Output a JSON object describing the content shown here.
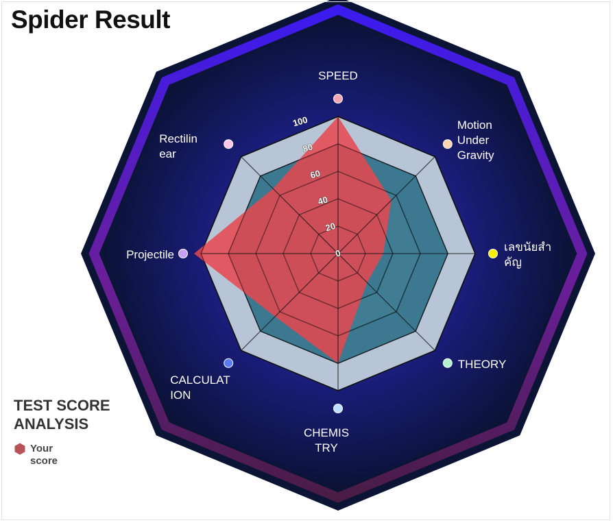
{
  "title": "Spider Result",
  "legend": {
    "title": "TEST SCORE ANALYSIS",
    "items": [
      {
        "label": "Your score",
        "color": "#b85459"
      }
    ]
  },
  "chart_data": {
    "type": "radar",
    "axes": [
      {
        "label": "SPEED",
        "dot_color": "#f4a6b6"
      },
      {
        "label": "Motion Under Gravity",
        "dot_color": "#fdd5b1"
      },
      {
        "label": "เลขนัยสำคัญ",
        "dot_color": "#ffee00"
      },
      {
        "label": "THEORY",
        "dot_color": "#b3f2d0"
      },
      {
        "label": "CHEMISTRY",
        "dot_color": "#bde0fe"
      },
      {
        "label": "CALCULATION",
        "dot_color": "#5b7cf0"
      },
      {
        "label": "Projectile",
        "dot_color": "#c7a0f5"
      },
      {
        "label": "Rectilinear",
        "dot_color": "#ffc6e8"
      }
    ],
    "axis_label_lines": [
      [
        "SPEED"
      ],
      [
        "Motion",
        "Under",
        "Gravity"
      ],
      [
        "เลขนัยสำ",
        "คัญ"
      ],
      [
        "THEORY"
      ],
      [
        "CHEMIS",
        "TRY"
      ],
      [
        "CALCULAT",
        "ION"
      ],
      [
        "Projectile"
      ],
      [
        "Rectilin",
        "ear"
      ]
    ],
    "rlim": [
      0,
      100
    ],
    "ticks": [
      0,
      20,
      40,
      60,
      80,
      100
    ],
    "series": [
      {
        "name": "Your score",
        "values": [
          100,
          55,
          33,
          30,
          80,
          65,
          105,
          67
        ],
        "color": "#e8474f"
      }
    ],
    "background_series": [
      {
        "values": [
          80,
          80,
          80,
          80,
          80,
          80,
          80,
          80
        ],
        "color": "#2a6f86"
      }
    ]
  }
}
